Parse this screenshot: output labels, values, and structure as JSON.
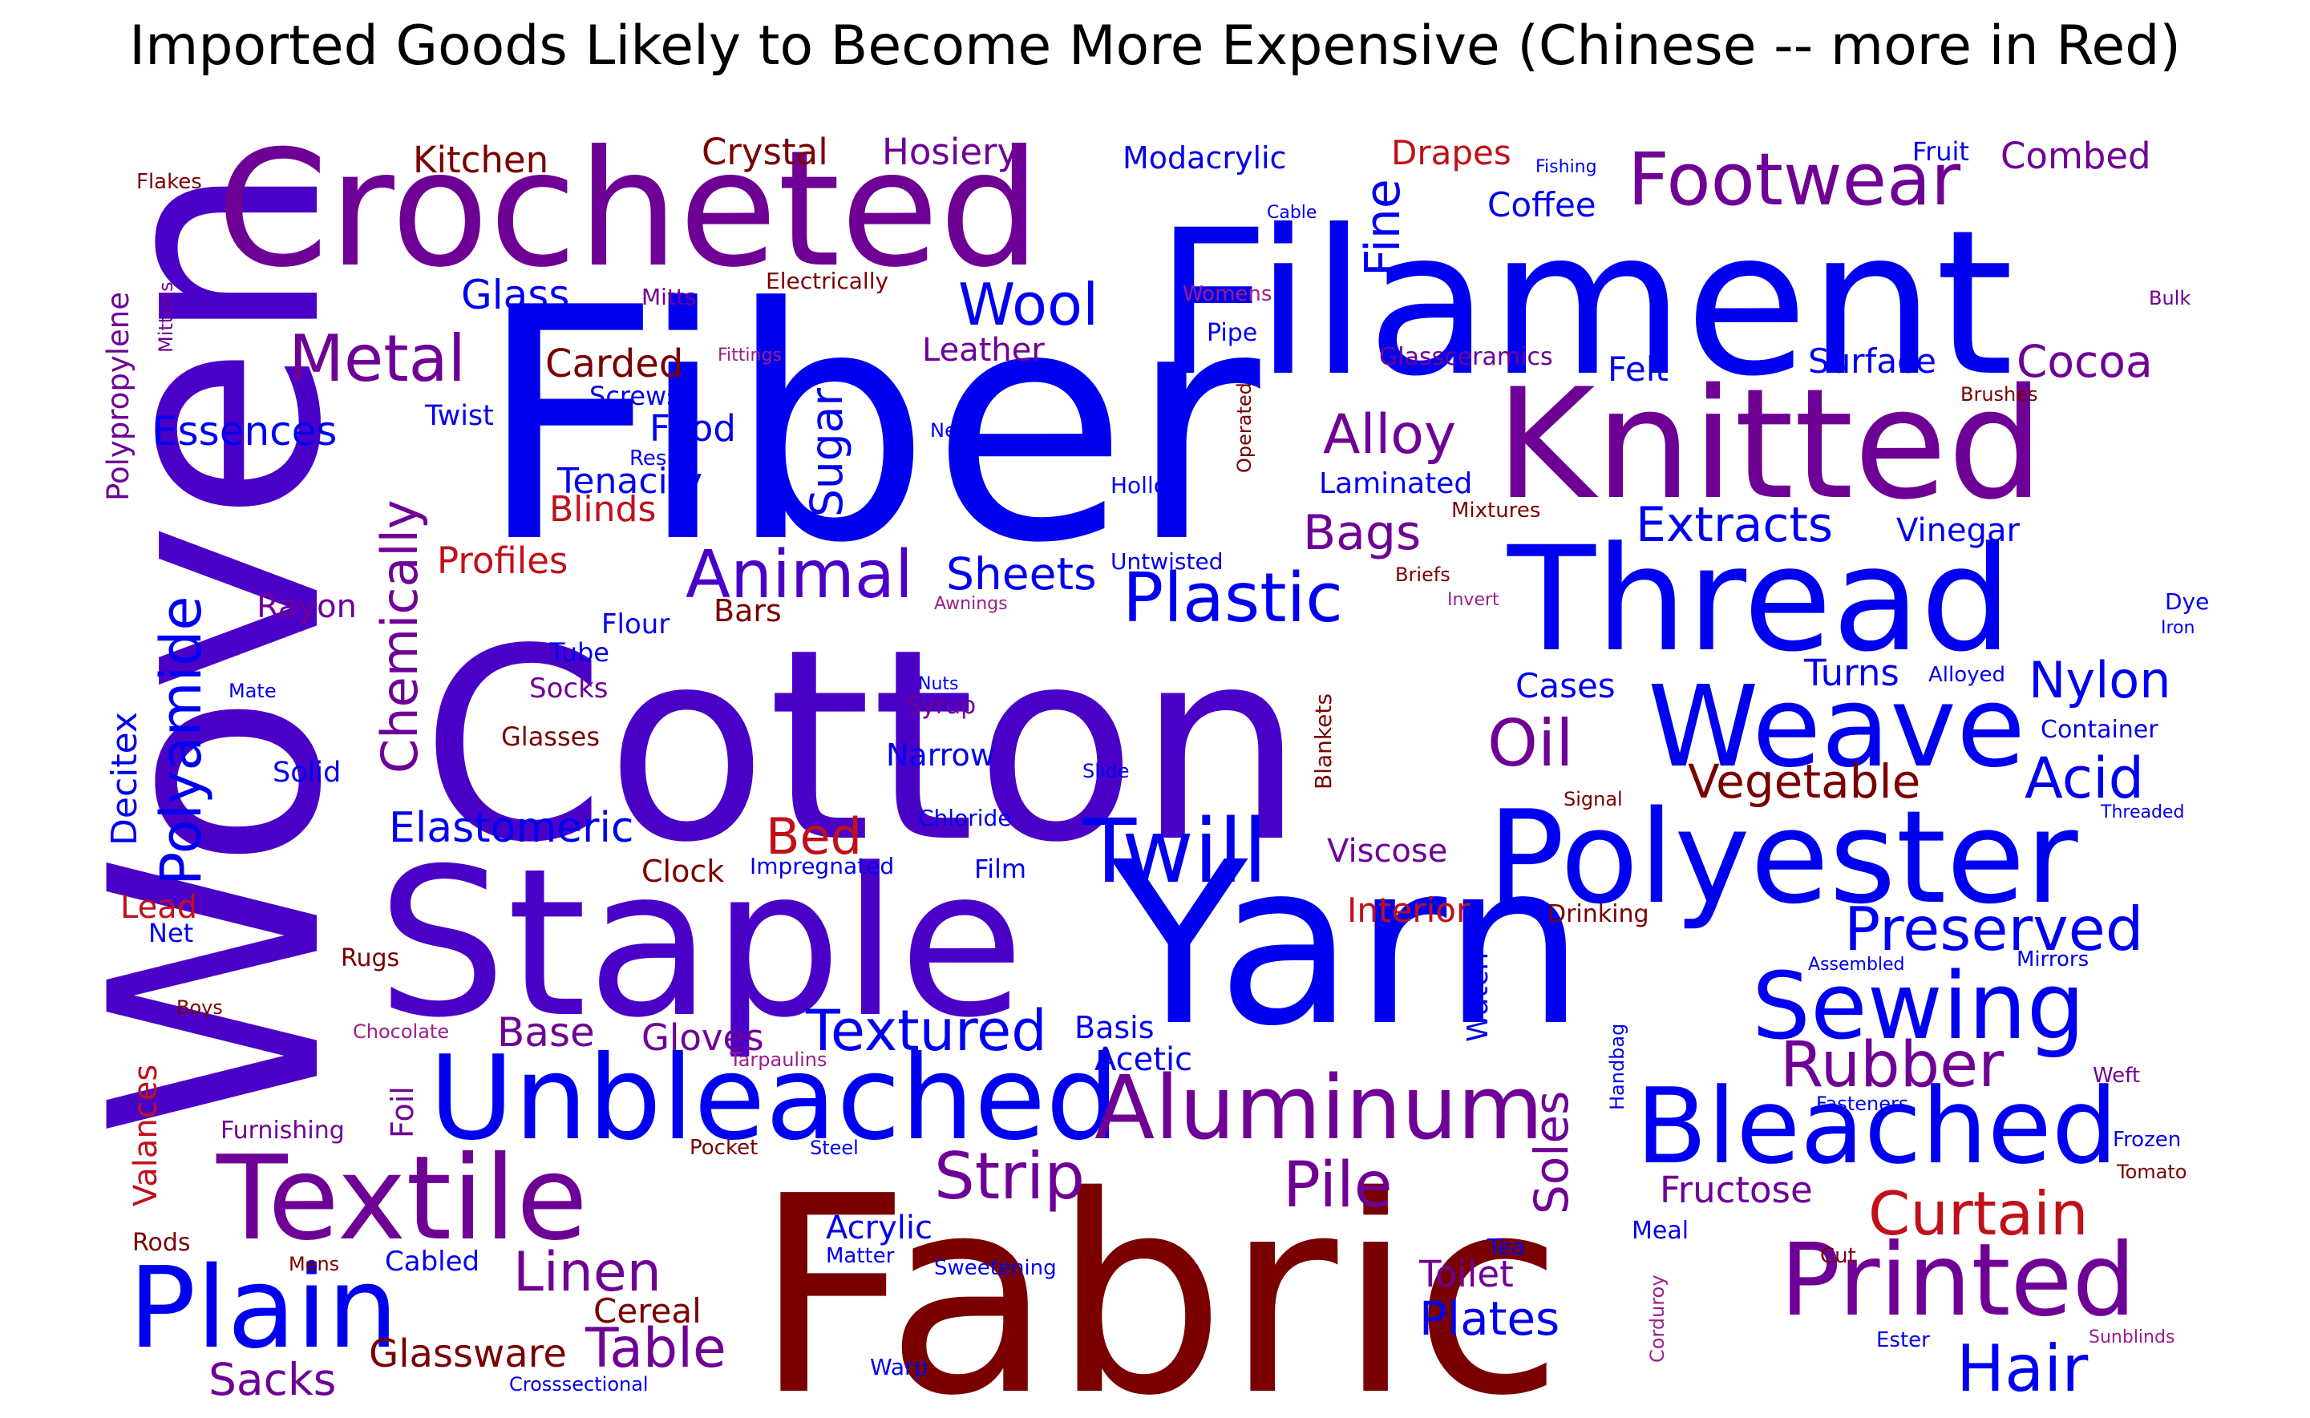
{
  "title": "Imported Goods Likely to Become More Expensive (Chinese -- more in Red)",
  "colors": {
    "red": "#7a0000",
    "crimson": "#c0101a",
    "blue": "#0000f0",
    "purple": "#6f0096",
    "violet": "#4b00c8",
    "magenta": "#9a1e8c"
  },
  "words": [
    {
      "text": "Fiber",
      "color": "blue"
    },
    {
      "text": "Cotton",
      "color": "violet"
    },
    {
      "text": "Fabric",
      "color": "red"
    },
    {
      "text": "Woven",
      "color": "violet"
    },
    {
      "text": "Staple",
      "color": "violet"
    },
    {
      "text": "Yarn",
      "color": "blue"
    },
    {
      "text": "Filament",
      "color": "blue"
    },
    {
      "text": "Crocheted",
      "color": "purple"
    },
    {
      "text": "Knitted",
      "color": "purple"
    },
    {
      "text": "Thread",
      "color": "blue"
    },
    {
      "text": "Polyester",
      "color": "blue"
    },
    {
      "text": "Unbleached",
      "color": "blue"
    },
    {
      "text": "Textile",
      "color": "purple"
    },
    {
      "text": "Weave",
      "color": "blue"
    },
    {
      "text": "Bleached",
      "color": "blue"
    },
    {
      "text": "Plain",
      "color": "blue"
    },
    {
      "text": "Printed",
      "color": "purple"
    },
    {
      "text": "Aluminum",
      "color": "purple"
    },
    {
      "text": "Sewing",
      "color": "blue"
    },
    {
      "text": "Twill",
      "color": "blue"
    },
    {
      "text": "Footwear",
      "color": "purple"
    },
    {
      "text": "Animal",
      "color": "violet"
    },
    {
      "text": "Plastic",
      "color": "blue"
    },
    {
      "text": "Metal",
      "color": "purple"
    },
    {
      "text": "Preserved",
      "color": "blue"
    },
    {
      "text": "Strip",
      "color": "purple"
    },
    {
      "text": "Rubber",
      "color": "purple"
    },
    {
      "text": "Curtain",
      "color": "crimson"
    },
    {
      "text": "Hair",
      "color": "blue"
    },
    {
      "text": "Textured",
      "color": "blue"
    },
    {
      "text": "Wool",
      "color": "blue"
    },
    {
      "text": "Oil",
      "color": "purple"
    },
    {
      "text": "Pile",
      "color": "purple"
    },
    {
      "text": "Polyamide",
      "color": "blue"
    },
    {
      "text": "Alloy",
      "color": "purple"
    },
    {
      "text": "Nylon",
      "color": "blue"
    },
    {
      "text": "Acid",
      "color": "blue"
    },
    {
      "text": "Bed",
      "color": "crimson"
    },
    {
      "text": "Linen",
      "color": "purple"
    },
    {
      "text": "Table",
      "color": "purple"
    },
    {
      "text": "Sheets",
      "color": "blue"
    },
    {
      "text": "Extracts",
      "color": "blue"
    },
    {
      "text": "Chemically",
      "color": "purple"
    },
    {
      "text": "Vegetable",
      "color": "red"
    },
    {
      "text": "Fine",
      "color": "blue"
    },
    {
      "text": "Bags",
      "color": "purple"
    },
    {
      "text": "Soles",
      "color": "purple"
    },
    {
      "text": "Elastomeric",
      "color": "blue"
    },
    {
      "text": "Cocoa",
      "color": "purple"
    },
    {
      "text": "Sugar",
      "color": "blue"
    },
    {
      "text": "Glassware",
      "color": "red"
    },
    {
      "text": "Sacks",
      "color": "purple"
    },
    {
      "text": "Plates",
      "color": "blue"
    },
    {
      "text": "Essences",
      "color": "blue"
    },
    {
      "text": "Glass",
      "color": "blue"
    },
    {
      "text": "Kitchen",
      "color": "red"
    },
    {
      "text": "Crystal",
      "color": "red"
    },
    {
      "text": "Hosiery",
      "color": "purple"
    },
    {
      "text": "Carded",
      "color": "red"
    },
    {
      "text": "Food",
      "color": "blue"
    },
    {
      "text": "Tenacity",
      "color": "blue"
    },
    {
      "text": "Blinds",
      "color": "crimson"
    },
    {
      "text": "Profiles",
      "color": "crimson"
    },
    {
      "text": "Coffee",
      "color": "blue"
    },
    {
      "text": "Combed",
      "color": "purple"
    },
    {
      "text": "Drapes",
      "color": "crimson"
    },
    {
      "text": "Modacrylic",
      "color": "blue"
    },
    {
      "text": "Felt",
      "color": "blue"
    },
    {
      "text": "Surface",
      "color": "blue"
    },
    {
      "text": "Leather",
      "color": "purple"
    },
    {
      "text": "Laminated",
      "color": "blue"
    },
    {
      "text": "Fructose",
      "color": "purple"
    },
    {
      "text": "Toilet",
      "color": "purple"
    },
    {
      "text": "Cereal",
      "color": "red"
    },
    {
      "text": "Acrylic",
      "color": "blue"
    },
    {
      "text": "Base",
      "color": "purple"
    },
    {
      "text": "Gloves",
      "color": "purple"
    },
    {
      "text": "Basis",
      "color": "blue"
    },
    {
      "text": "Acetic",
      "color": "blue"
    },
    {
      "text": "Interior",
      "color": "crimson"
    },
    {
      "text": "Viscose",
      "color": "purple"
    },
    {
      "text": "Turns",
      "color": "blue"
    },
    {
      "text": "Cases",
      "color": "blue"
    },
    {
      "text": "Vinegar",
      "color": "blue"
    },
    {
      "text": "Rayon",
      "color": "purple"
    },
    {
      "text": "Decitex",
      "color": "blue"
    },
    {
      "text": "Polypropylene",
      "color": "purple"
    },
    {
      "text": "Valances",
      "color": "crimson"
    },
    {
      "text": "Watch",
      "color": "blue"
    },
    {
      "text": "Foil",
      "color": "purple"
    },
    {
      "text": "Narrow",
      "color": "blue"
    },
    {
      "text": "Clock",
      "color": "red"
    },
    {
      "text": "Lead",
      "color": "crimson"
    },
    {
      "text": "Net",
      "color": "blue"
    },
    {
      "text": "Bars",
      "color": "red"
    },
    {
      "text": "Twist",
      "color": "blue"
    },
    {
      "text": "Screws",
      "color": "blue"
    },
    {
      "text": "Flour",
      "color": "blue"
    },
    {
      "text": "Tube",
      "color": "blue"
    },
    {
      "text": "Socks",
      "color": "purple"
    },
    {
      "text": "Glasses",
      "color": "red"
    },
    {
      "text": "Solid",
      "color": "blue"
    },
    {
      "text": "Rugs",
      "color": "red"
    },
    {
      "text": "Film",
      "color": "blue"
    },
    {
      "text": "Impregnated",
      "color": "blue"
    },
    {
      "text": "Chloride",
      "color": "blue"
    },
    {
      "text": "Syrup",
      "color": "purple"
    },
    {
      "text": "Mitts",
      "color": "purple"
    },
    {
      "text": "Electrically",
      "color": "red"
    },
    {
      "text": "Fittings",
      "color": "magenta"
    },
    {
      "text": "Pipe",
      "color": "blue"
    },
    {
      "text": "Womens",
      "color": "magenta"
    },
    {
      "text": "Glassceramics",
      "color": "purple"
    },
    {
      "text": "Hollow",
      "color": "blue"
    },
    {
      "text": "Untwisted",
      "color": "blue"
    },
    {
      "text": "Operated",
      "color": "red"
    },
    {
      "text": "Mixtures",
      "color": "red"
    },
    {
      "text": "Briefs",
      "color": "red"
    },
    {
      "text": "Invert",
      "color": "magenta"
    },
    {
      "text": "Blankets",
      "color": "red"
    },
    {
      "text": "Drinking",
      "color": "red"
    },
    {
      "text": "Signal",
      "color": "red"
    },
    {
      "text": "Alloyed",
      "color": "blue"
    },
    {
      "text": "Container",
      "color": "blue"
    },
    {
      "text": "Threaded",
      "color": "blue"
    },
    {
      "text": "Dye",
      "color": "blue"
    },
    {
      "text": "Iron",
      "color": "blue"
    },
    {
      "text": "Bulk",
      "color": "purple"
    },
    {
      "text": "Brushes",
      "color": "red"
    },
    {
      "text": "Fruit",
      "color": "blue"
    },
    {
      "text": "Fishing",
      "color": "blue"
    },
    {
      "text": "Cable",
      "color": "blue"
    },
    {
      "text": "Nes",
      "color": "blue"
    },
    {
      "text": "Resins",
      "color": "blue"
    },
    {
      "text": "Awnings",
      "color": "magenta"
    },
    {
      "text": "Nuts",
      "color": "blue"
    },
    {
      "text": "Mate",
      "color": "blue"
    },
    {
      "text": "Slide",
      "color": "blue"
    },
    {
      "text": "Mirrors",
      "color": "blue"
    },
    {
      "text": "Assembled",
      "color": "blue"
    },
    {
      "text": "Weft",
      "color": "purple"
    },
    {
      "text": "Fasteners",
      "color": "blue"
    },
    {
      "text": "Frozen",
      "color": "blue"
    },
    {
      "text": "Tomato",
      "color": "red"
    },
    {
      "text": "Handbag",
      "color": "blue"
    },
    {
      "text": "Meal",
      "color": "blue"
    },
    {
      "text": "Cut",
      "color": "red"
    },
    {
      "text": "Tea",
      "color": "blue"
    },
    {
      "text": "Corduroy",
      "color": "magenta"
    },
    {
      "text": "Ester",
      "color": "blue"
    },
    {
      "text": "Sunblinds",
      "color": "magenta"
    },
    {
      "text": "Warp",
      "color": "blue"
    },
    {
      "text": "Sweetening",
      "color": "blue"
    },
    {
      "text": "Matter",
      "color": "blue"
    },
    {
      "text": "Crosssectional",
      "color": "blue"
    },
    {
      "text": "Pocket",
      "color": "red"
    },
    {
      "text": "Steel",
      "color": "blue"
    },
    {
      "text": "Tarpaulins",
      "color": "magenta"
    },
    {
      "text": "Chocolate",
      "color": "magenta"
    },
    {
      "text": "Furnishing",
      "color": "purple"
    },
    {
      "text": "Cabled",
      "color": "blue"
    },
    {
      "text": "Mens",
      "color": "red"
    },
    {
      "text": "Rods",
      "color": "red"
    },
    {
      "text": "Boys",
      "color": "red"
    },
    {
      "text": "Flakes",
      "color": "red"
    },
    {
      "text": "Mittens",
      "color": "purple"
    }
  ]
}
